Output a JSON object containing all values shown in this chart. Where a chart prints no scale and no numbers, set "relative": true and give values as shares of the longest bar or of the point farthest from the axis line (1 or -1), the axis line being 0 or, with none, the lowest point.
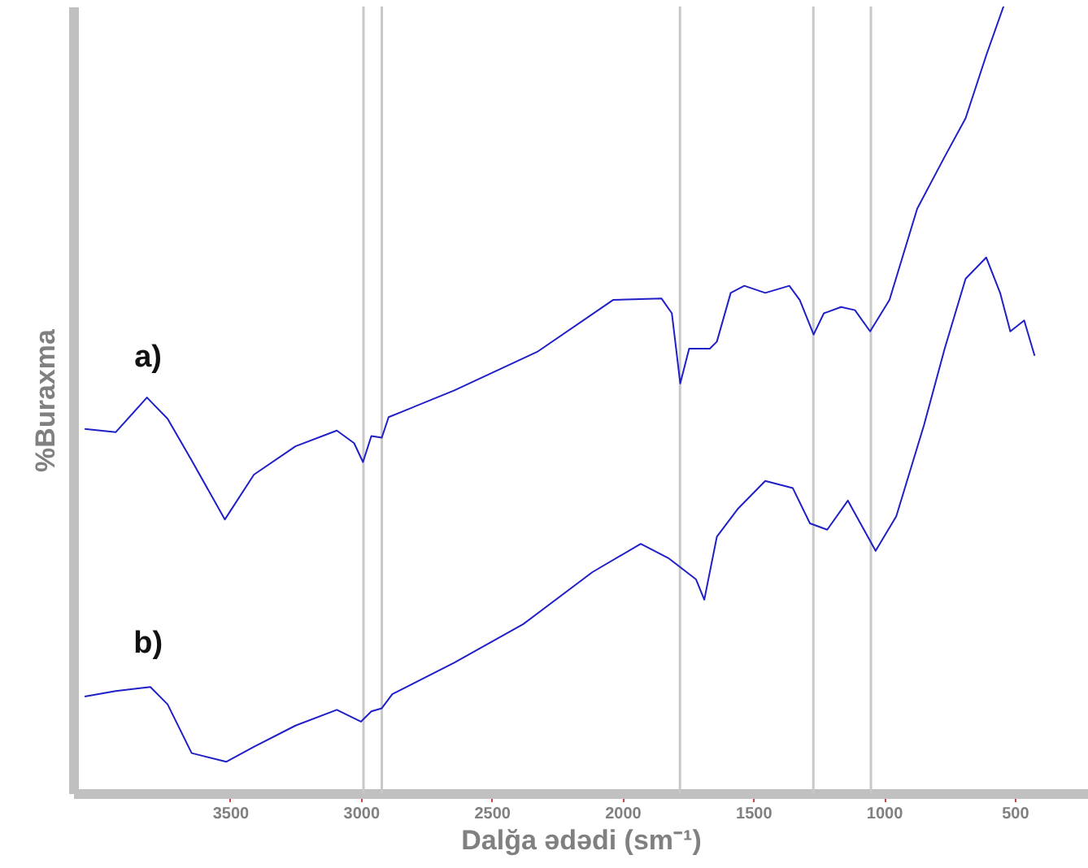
{
  "chart_data": {
    "type": "line",
    "xlabel": "Dalğa ədədi  (sm⁻¹)",
    "ylabel": "%Buraxma",
    "relative": true,
    "grid": false,
    "xlim": [
      4100,
      220
    ],
    "xticks": [
      3500,
      3000,
      2500,
      2000,
      1500,
      1000,
      500
    ],
    "ref_lines": [
      {
        "axis": "x",
        "value": 2990,
        "color": "#c8c8c8"
      },
      {
        "axis": "x",
        "value": 2920,
        "color": "#c8c8c8"
      },
      {
        "axis": "x",
        "value": 1780,
        "color": "#c8c8c8"
      },
      {
        "axis": "x",
        "value": 1270,
        "color": "#c8c8c8"
      },
      {
        "axis": "x",
        "value": 1050,
        "color": "#c8c8c8"
      }
    ],
    "series": [
      {
        "name": "a)",
        "color": "#1f1fc8",
        "x": [
          4056,
          3937,
          3818,
          3739,
          3647,
          3520,
          3409,
          3250,
          3092,
          3026,
          2992,
          2960,
          2920,
          2894,
          2643,
          2326,
          2036,
          1851,
          1811,
          1779,
          1745,
          1666,
          1639,
          1586,
          1534,
          1454,
          1362,
          1322,
          1269,
          1230,
          1164,
          1111,
          1053,
          979,
          873,
          768,
          688,
          609,
          543
        ],
        "values": [
          0.463,
          0.459,
          0.503,
          0.476,
          0.423,
          0.348,
          0.405,
          0.441,
          0.461,
          0.445,
          0.421,
          0.454,
          0.452,
          0.478,
          0.512,
          0.561,
          0.627,
          0.629,
          0.61,
          0.521,
          0.565,
          0.565,
          0.574,
          0.636,
          0.645,
          0.636,
          0.645,
          0.627,
          0.583,
          0.61,
          0.618,
          0.614,
          0.587,
          0.627,
          0.743,
          0.809,
          0.858,
          0.938,
          1.0
        ]
      },
      {
        "name": "b)",
        "color": "#1f1fc8",
        "x": [
          4056,
          3937,
          3805,
          3739,
          3647,
          3515,
          3409,
          3250,
          3092,
          3000,
          2960,
          2920,
          2880,
          2643,
          2379,
          2115,
          1930,
          1825,
          1719,
          1687,
          1639,
          1560,
          1454,
          1349,
          1283,
          1217,
          1138,
          1032,
          953,
          847,
          768,
          688,
          609,
          556,
          517,
          464,
          424
        ],
        "values": [
          0.123,
          0.13,
          0.135,
          0.113,
          0.051,
          0.04,
          0.059,
          0.086,
          0.106,
          0.091,
          0.104,
          0.108,
          0.126,
          0.166,
          0.215,
          0.281,
          0.317,
          0.299,
          0.272,
          0.246,
          0.326,
          0.361,
          0.397,
          0.388,
          0.343,
          0.335,
          0.372,
          0.308,
          0.352,
          0.468,
          0.565,
          0.654,
          0.681,
          0.636,
          0.587,
          0.601,
          0.556
        ]
      }
    ]
  }
}
